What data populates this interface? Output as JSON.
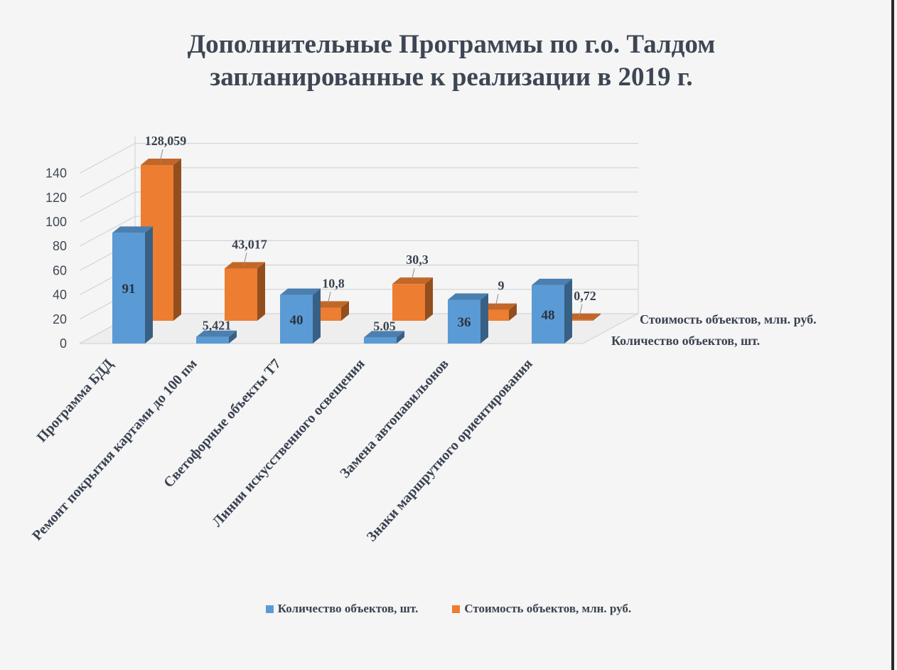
{
  "colors": {
    "blue": "#5b9bd5",
    "orange": "#ed7d31",
    "text": "#3e4654"
  },
  "chart_data": {
    "type": "bar",
    "style": "3d-clustered-columns",
    "title_lines": [
      "Дополнительные Программы по г.о. Талдом",
      "запланированные к реализации в 2019 г."
    ],
    "categories": [
      "Программа БДД",
      "Ремонт покрытия картами до 100 пм",
      "Светофорные объекты Т7",
      "Линии искусственного освещения",
      "Замена автопавильонов",
      "Знаки маршрутного ориентирования"
    ],
    "series": [
      {
        "name": "Количество объектов, шт.",
        "values": [
          91,
          5.421,
          40,
          5.05,
          36,
          48
        ],
        "labels": [
          "91",
          "5,421",
          "40",
          "5.05",
          "36",
          "48"
        ]
      },
      {
        "name": "Стоимость объектов, млн. руб.",
        "values": [
          128.059,
          43.017,
          10.8,
          30.3,
          9,
          0.72
        ],
        "labels": [
          "128,059",
          "43,017",
          "10,8",
          "30,3",
          "9",
          "0,72"
        ]
      }
    ],
    "yticks": [
      "0",
      "20",
      "40",
      "60",
      "80",
      "100",
      "120",
      "140"
    ],
    "ylim": [
      0,
      140
    ],
    "grid": true,
    "legend": "bottom",
    "depth_labels": [
      "Стоимость объектов, млн. руб.",
      "Количество объектов, шт."
    ]
  }
}
